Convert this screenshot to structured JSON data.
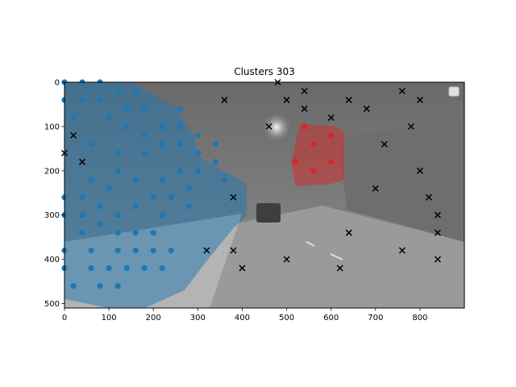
{
  "chart_data": {
    "type": "scatter",
    "title": "Clusters 303",
    "xlabel": "",
    "ylabel": "",
    "xlim": [
      0,
      900
    ],
    "ylim": [
      510,
      0
    ],
    "x_ticks": [
      0,
      100,
      200,
      300,
      400,
      500,
      600,
      700,
      800
    ],
    "y_ticks": [
      0,
      100,
      200,
      300,
      400,
      500
    ],
    "grid": false,
    "legend": "top-right (empty)",
    "background": "grayscale night street photograph",
    "colors": {
      "cluster_blue": "#1f77b4",
      "cluster_red": "#d62728",
      "noise": "#000000"
    },
    "series": [
      {
        "marker": "circle",
        "color": "#1f77b4",
        "points": [
          [
            0,
            0
          ],
          [
            40,
            0
          ],
          [
            80,
            0
          ],
          [
            0,
            40
          ],
          [
            40,
            40
          ],
          [
            80,
            40
          ],
          [
            120,
            20
          ],
          [
            160,
            20
          ],
          [
            20,
            80
          ],
          [
            100,
            80
          ],
          [
            140,
            60
          ],
          [
            180,
            60
          ],
          [
            260,
            60
          ],
          [
            60,
            140
          ],
          [
            140,
            100
          ],
          [
            180,
            120
          ],
          [
            220,
            100
          ],
          [
            260,
            100
          ],
          [
            300,
            120
          ],
          [
            120,
            160
          ],
          [
            180,
            160
          ],
          [
            220,
            140
          ],
          [
            260,
            140
          ],
          [
            300,
            160
          ],
          [
            340,
            140
          ],
          [
            60,
            220
          ],
          [
            120,
            200
          ],
          [
            160,
            220
          ],
          [
            220,
            220
          ],
          [
            260,
            200
          ],
          [
            300,
            200
          ],
          [
            340,
            180
          ],
          [
            360,
            220
          ],
          [
            0,
            260
          ],
          [
            40,
            260
          ],
          [
            100,
            240
          ],
          [
            200,
            260
          ],
          [
            240,
            260
          ],
          [
            280,
            240
          ],
          [
            0,
            300
          ],
          [
            40,
            300
          ],
          [
            80,
            280
          ],
          [
            120,
            300
          ],
          [
            160,
            280
          ],
          [
            220,
            300
          ],
          [
            280,
            280
          ],
          [
            40,
            340
          ],
          [
            80,
            320
          ],
          [
            120,
            340
          ],
          [
            160,
            340
          ],
          [
            200,
            340
          ],
          [
            0,
            380
          ],
          [
            60,
            380
          ],
          [
            120,
            380
          ],
          [
            160,
            380
          ],
          [
            200,
            380
          ],
          [
            240,
            380
          ],
          [
            0,
            420
          ],
          [
            60,
            420
          ],
          [
            100,
            420
          ],
          [
            140,
            420
          ],
          [
            180,
            420
          ],
          [
            220,
            420
          ],
          [
            20,
            460
          ],
          [
            80,
            460
          ],
          [
            120,
            460
          ]
        ],
        "hull": [
          [
            0,
            0
          ],
          [
            150,
            0
          ],
          [
            250,
            55
          ],
          [
            285,
            110
          ],
          [
            305,
            170
          ],
          [
            410,
            230
          ],
          [
            410,
            300
          ],
          [
            380,
            330
          ],
          [
            315,
            410
          ],
          [
            270,
            470
          ],
          [
            180,
            510
          ],
          [
            100,
            510
          ],
          [
            0,
            490
          ]
        ]
      },
      {
        "marker": "circle",
        "color": "#d62728",
        "points": [
          [
            540,
            100
          ],
          [
            560,
            140
          ],
          [
            600,
            120
          ],
          [
            520,
            180
          ],
          [
            600,
            180
          ],
          [
            560,
            200
          ]
        ],
        "hull": [
          [
            530,
            95
          ],
          [
            610,
            100
          ],
          [
            630,
            115
          ],
          [
            630,
            220
          ],
          [
            600,
            230
          ],
          [
            520,
            235
          ],
          [
            510,
            180
          ]
        ]
      },
      {
        "marker": "x",
        "color": "#000000",
        "points": [
          [
            480,
            0
          ],
          [
            360,
            40
          ],
          [
            500,
            40
          ],
          [
            540,
            20
          ],
          [
            540,
            60
          ],
          [
            640,
            40
          ],
          [
            680,
            60
          ],
          [
            760,
            20
          ],
          [
            800,
            40
          ],
          [
            20,
            120
          ],
          [
            460,
            100
          ],
          [
            600,
            80
          ],
          [
            780,
            100
          ],
          [
            0,
            160
          ],
          [
            40,
            180
          ],
          [
            720,
            140
          ],
          [
            800,
            200
          ],
          [
            380,
            260
          ],
          [
            700,
            240
          ],
          [
            820,
            260
          ],
          [
            840,
            300
          ],
          [
            320,
            380
          ],
          [
            380,
            380
          ],
          [
            500,
            400
          ],
          [
            640,
            340
          ],
          [
            760,
            380
          ],
          [
            840,
            340
          ],
          [
            840,
            400
          ],
          [
            400,
            420
          ],
          [
            620,
            420
          ]
        ]
      }
    ]
  }
}
